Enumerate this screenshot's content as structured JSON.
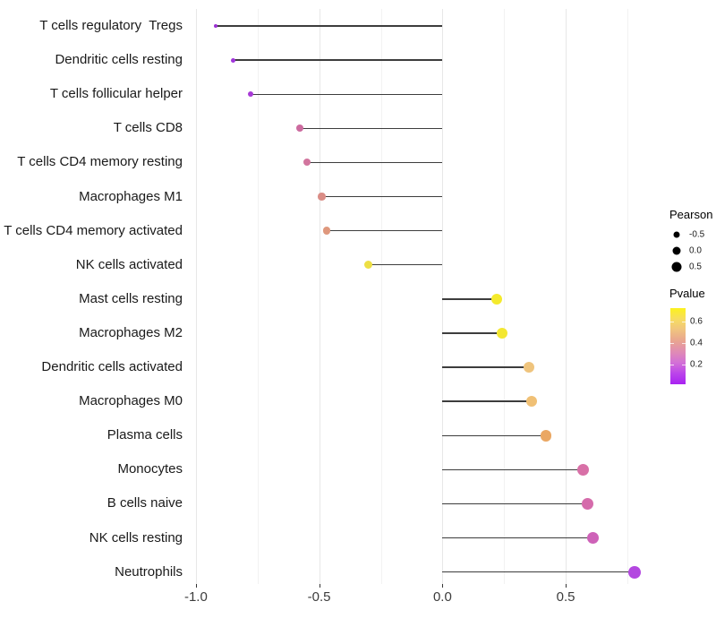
{
  "chart_data": {
    "type": "lollipop",
    "title": "",
    "xlabel": "",
    "ylabel": "",
    "x_tick_values": [
      -1.0,
      -0.5,
      0.0,
      0.5
    ],
    "x_tick_labels": [
      "-1.0",
      "-0.5",
      "0.0",
      "0.5"
    ],
    "x_range": [
      -1.025,
      0.79
    ],
    "grid": {
      "major_step": 0.5,
      "minor_step": 0.25,
      "horizontal": false
    },
    "baseline": 0.0,
    "rows": [
      {
        "label": "T cells regulatory  Tregs",
        "pearson": -0.92,
        "dot_color": "#9c30d4",
        "dot_diameter": 4
      },
      {
        "label": "Dendritic cells resting",
        "pearson": -0.85,
        "dot_color": "#a135db",
        "dot_diameter": 5
      },
      {
        "label": "T cells follicular helper",
        "pearson": -0.78,
        "dot_color": "#a83ad7",
        "dot_diameter": 6
      },
      {
        "label": "T cells CD8",
        "pearson": -0.58,
        "dot_color": "#cc6b9f",
        "dot_diameter": 8
      },
      {
        "label": "T cells CD4 memory resting",
        "pearson": -0.55,
        "dot_color": "#d2759e",
        "dot_diameter": 8
      },
      {
        "label": "Macrophages M1",
        "pearson": -0.49,
        "dot_color": "#da8d86",
        "dot_diameter": 8.5
      },
      {
        "label": "T cells CD4 memory activated",
        "pearson": -0.47,
        "dot_color": "#df987d",
        "dot_diameter": 8.5
      },
      {
        "label": "NK cells activated",
        "pearson": -0.3,
        "dot_color": "#eddf44",
        "dot_diameter": 9
      },
      {
        "label": "Mast cells resting",
        "pearson": 0.22,
        "dot_color": "#f4ea2c",
        "dot_diameter": 12
      },
      {
        "label": "Macrophages M2",
        "pearson": 0.24,
        "dot_color": "#f3e731",
        "dot_diameter": 12
      },
      {
        "label": "Dendritic cells activated",
        "pearson": 0.35,
        "dot_color": "#efc47d",
        "dot_diameter": 12
      },
      {
        "label": "Macrophages M0",
        "pearson": 0.36,
        "dot_color": "#f0c075",
        "dot_diameter": 12
      },
      {
        "label": "Plasma cells",
        "pearson": 0.42,
        "dot_color": "#eaa763",
        "dot_diameter": 12.5
      },
      {
        "label": "Monocytes",
        "pearson": 0.57,
        "dot_color": "#d870a7",
        "dot_diameter": 13
      },
      {
        "label": "B cells naive",
        "pearson": 0.59,
        "dot_color": "#d56bab",
        "dot_diameter": 13
      },
      {
        "label": "NK cells resting",
        "pearson": 0.61,
        "dot_color": "#ce62b8",
        "dot_diameter": 13
      },
      {
        "label": "Neutrophils",
        "pearson": 0.78,
        "dot_color": "#b347e0",
        "dot_diameter": 14
      }
    ],
    "legend": {
      "size": {
        "title": "Pearson",
        "dot_color": "#000000",
        "entries": [
          {
            "label": "-0.5",
            "diameter": 7
          },
          {
            "label": "0.0",
            "diameter": 9
          },
          {
            "label": "0.5",
            "diameter": 11
          }
        ]
      },
      "color": {
        "title": "Pvalue",
        "ticks": [
          "0.6",
          "0.4",
          "0.2"
        ],
        "gradient_top_to_bottom": [
          "#fcf21c",
          "#f7dd60",
          "#f0c37f",
          "#e9a590",
          "#e08cb4",
          "#d371d6",
          "#bb45ea",
          "#a922f2"
        ]
      }
    },
    "style": {
      "segment_color": "#3d3d3d",
      "grid_major_color": "#e7e7e7",
      "grid_minor_color": "#f2f2f2",
      "background": "#ffffff"
    }
  }
}
